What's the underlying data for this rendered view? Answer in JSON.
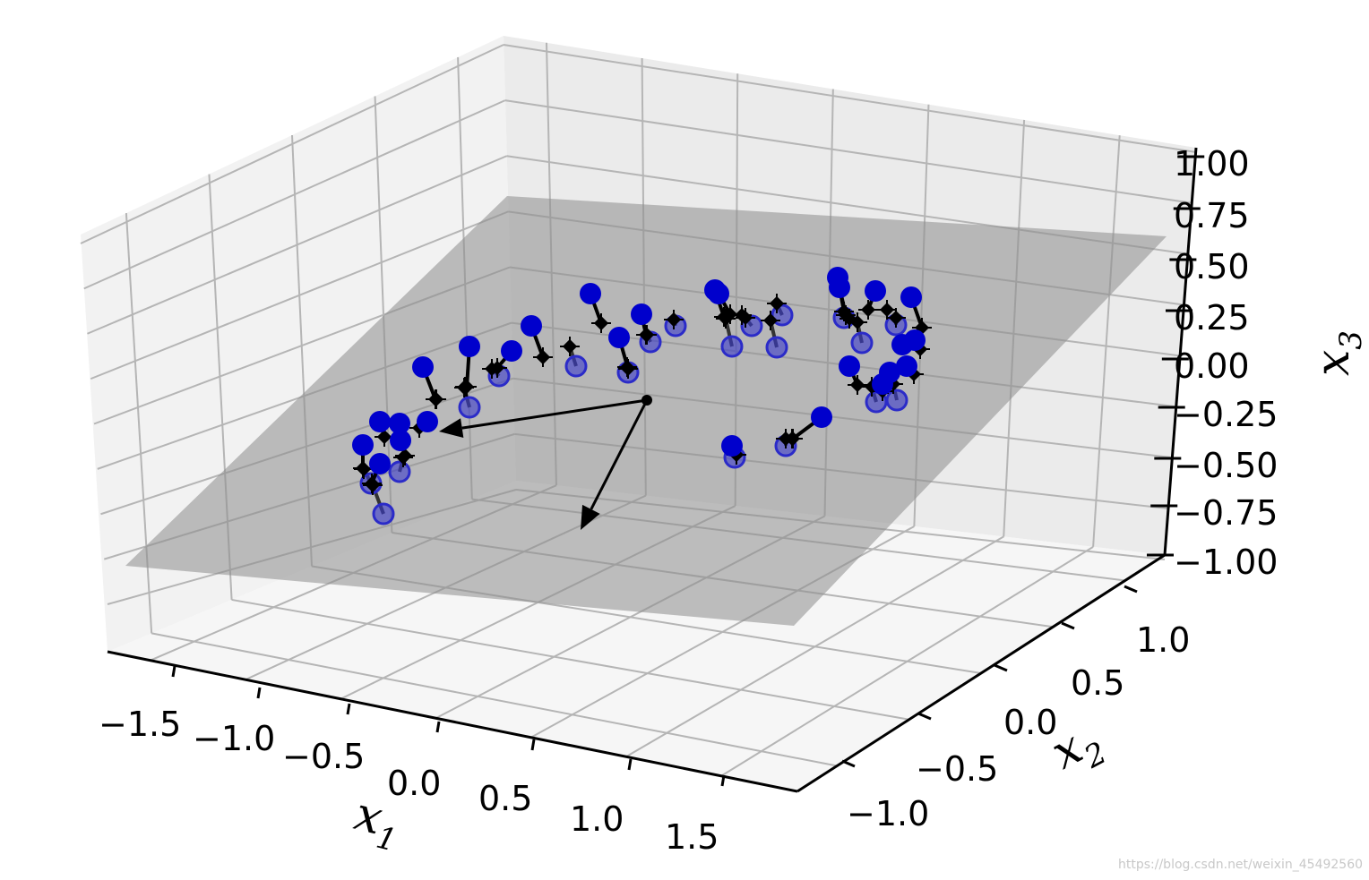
{
  "chart_data": {
    "type": "scatter",
    "projection": "3d",
    "title": "",
    "axes": {
      "x1": {
        "label": "x",
        "subscript": "1",
        "ticks": [
          "−1.5",
          "−1.0",
          "−0.5",
          "0.0",
          "0.5",
          "1.0",
          "1.5"
        ],
        "range": [
          -1.8,
          1.8
        ]
      },
      "x2": {
        "label": "x",
        "subscript": "2",
        "ticks": [
          "−1.0",
          "−0.5",
          "0.0",
          "0.5",
          "1.0"
        ],
        "range": [
          -1.3,
          1.3
        ]
      },
      "x3": {
        "label": "x",
        "subscript": "3",
        "ticks": [
          "−1.00",
          "−0.75",
          "−0.50",
          "−0.25",
          "0.00",
          "0.25",
          "0.50",
          "0.75",
          "1.00"
        ],
        "range": [
          -1.0,
          1.0
        ]
      }
    },
    "grid": true,
    "plane": {
      "description": "fitted 2D plane (shaded gray)",
      "color": "#8c8c8c"
    },
    "components": {
      "origin": [
        0.0,
        0.0,
        0.0
      ],
      "colors": {
        "points_above": "#0000cc",
        "points_below": "#3a3acc",
        "projections": "#000000"
      }
    },
    "series": [
      {
        "name": "",
        "color": "#0000cc",
        "role": "points above plane"
      },
      {
        "name": "",
        "color": "#4a4ad0",
        "role": "points below plane"
      },
      {
        "name": "",
        "color": "#000000",
        "role": "projections onto plane"
      }
    ],
    "screen_points": [
      {
        "p": [
          472,
          410
        ],
        "q": [
          486,
          446
        ],
        "s": "a"
      },
      {
        "p": [
          424,
          471
        ],
        "q": [
          429,
          488
        ],
        "s": "a"
      },
      {
        "p": [
          446,
          473
        ],
        "q": [
          447,
          490
        ],
        "s": "a"
      },
      {
        "p": [
          405,
          497
        ],
        "q": [
          405,
          523
        ],
        "s": "a"
      },
      {
        "p": [
          424,
          518
        ],
        "q": [
          415,
          540
        ],
        "s": "a"
      },
      {
        "p": [
          477,
          471
        ],
        "q": [
          468,
          478
        ],
        "s": "a"
      },
      {
        "p": [
          447,
          492
        ],
        "q": [
          452,
          509
        ],
        "s": "a"
      },
      {
        "p": [
          524,
          387
        ],
        "q": [
          521,
          432
        ],
        "s": "a"
      },
      {
        "p": [
          571,
          392
        ],
        "q": [
          555,
          411
        ],
        "s": "a"
      },
      {
        "p": [
          593,
          364
        ],
        "q": [
          606,
          399
        ],
        "s": "a"
      },
      {
        "p": [
          659,
          328
        ],
        "q": [
          671,
          361
        ],
        "s": "a"
      },
      {
        "p": [
          691,
          377
        ],
        "q": [
          701,
          412
        ],
        "s": "a"
      },
      {
        "p": [
          716,
          351
        ],
        "q": [
          721,
          374
        ],
        "s": "a"
      },
      {
        "p": [
          798,
          324
        ],
        "q": [
          808,
          354
        ],
        "s": "a"
      },
      {
        "p": [
          802,
          328
        ],
        "q": [
          815,
          351
        ],
        "s": "a"
      },
      {
        "p": [
          817,
          498
        ],
        "q": [
          822,
          508
        ],
        "s": "a"
      },
      {
        "p": [
          917,
          466
        ],
        "q": [
          885,
          490
        ],
        "s": "a"
      },
      {
        "p": [
          935,
          310
        ],
        "q": [
          942,
          348
        ],
        "s": "a"
      },
      {
        "p": [
          937,
          321
        ],
        "q": [
          944,
          352
        ],
        "s": "a"
      },
      {
        "p": [
          977,
          325
        ],
        "q": [
          969,
          346
        ],
        "s": "a"
      },
      {
        "p": [
          1017,
          332
        ],
        "q": [
          1029,
          366
        ],
        "s": "a"
      },
      {
        "p": [
          948,
          409
        ],
        "q": [
          957,
          430
        ],
        "s": "a"
      },
      {
        "p": [
          1007,
          385
        ],
        "q": [
          1027,
          390
        ],
        "s": "a"
      },
      {
        "p": [
          1021,
          380
        ],
        "q": [
          1027,
          390
        ],
        "s": "a"
      },
      {
        "p": [
          1012,
          409
        ],
        "q": [
          1020,
          418
        ],
        "s": "a"
      },
      {
        "p": [
          993,
          416
        ],
        "q": [
          991,
          429
        ],
        "s": "a"
      },
      {
        "p": [
          985,
          429
        ],
        "q": [
          985,
          437
        ],
        "s": "a"
      },
      {
        "p": [
          428,
          574
        ],
        "q": [
          416,
          542
        ],
        "s": "b"
      },
      {
        "p": [
          414,
          540
        ],
        "q": [
          406,
          524
        ],
        "s": "b"
      },
      {
        "p": [
          446,
          527
        ],
        "q": [
          450,
          511
        ],
        "s": "b"
      },
      {
        "p": [
          524,
          455
        ],
        "q": [
          518,
          433
        ],
        "s": "b"
      },
      {
        "p": [
          557,
          420
        ],
        "q": [
          549,
          412
        ],
        "s": "b"
      },
      {
        "p": [
          643,
          409
        ],
        "q": [
          636,
          387
        ],
        "s": "b"
      },
      {
        "p": [
          701,
          416
        ],
        "q": [
          700,
          410
        ],
        "s": "b"
      },
      {
        "p": [
          726,
          382
        ],
        "q": [
          722,
          374
        ],
        "s": "b"
      },
      {
        "p": [
          754,
          364
        ],
        "q": [
          752,
          357
        ],
        "s": "b"
      },
      {
        "p": [
          817,
          387
        ],
        "q": [
          810,
          356
        ],
        "s": "b"
      },
      {
        "p": [
          839,
          364
        ],
        "q": [
          832,
          355
        ],
        "s": "b"
      },
      {
        "p": [
          873,
          352
        ],
        "q": [
          867,
          339
        ],
        "s": "b"
      },
      {
        "p": [
          867,
          388
        ],
        "q": [
          860,
          358
        ],
        "s": "b"
      },
      {
        "p": [
          820,
          511
        ],
        "q": [
          822,
          508
        ],
        "s": "b"
      },
      {
        "p": [
          877,
          498
        ],
        "q": [
          877,
          490
        ],
        "s": "b"
      },
      {
        "p": [
          942,
          355
        ],
        "q": [
          942,
          348
        ],
        "s": "b"
      },
      {
        "p": [
          962,
          383
        ],
        "q": [
          957,
          360
        ],
        "s": "b"
      },
      {
        "p": [
          1000,
          363
        ],
        "q": [
          1000,
          355
        ],
        "s": "b"
      },
      {
        "p": [
          978,
          449
        ],
        "q": [
          973,
          432
        ],
        "s": "b"
      },
      {
        "p": [
          1001,
          447
        ],
        "q": [
          997,
          429
        ],
        "s": "b"
      }
    ],
    "extra_projections": [
      [
        606,
        399
      ],
      [
        636,
        387
      ],
      [
        671,
        361
      ],
      [
        752,
        357
      ],
      [
        722,
        374
      ],
      [
        810,
        356
      ],
      [
        828,
        352
      ],
      [
        867,
        339
      ],
      [
        884,
        490
      ],
      [
        877,
        490
      ],
      [
        942,
        348
      ],
      [
        948,
        356
      ],
      [
        990,
        346
      ],
      [
        1000,
        355
      ],
      [
        1027,
        390
      ],
      [
        957,
        430
      ],
      [
        487,
        446
      ],
      [
        519,
        432
      ],
      [
        429,
        488
      ],
      [
        452,
        509
      ],
      [
        406,
        524
      ],
      [
        416,
        542
      ]
    ]
  },
  "watermark": "https://blog.csdn.net/weixin_45492560"
}
